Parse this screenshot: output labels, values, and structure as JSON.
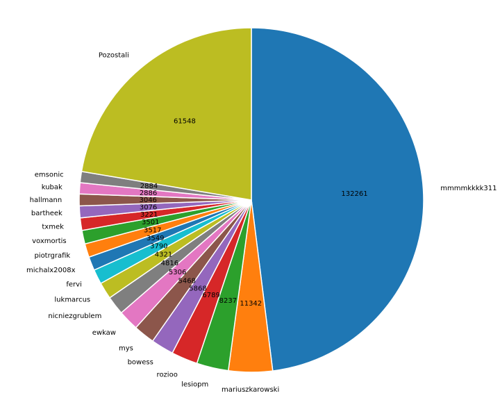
{
  "chart_data": {
    "type": "pie",
    "start_angle_deg": 90,
    "direction": "clockwise",
    "slices": [
      {
        "label": "mmmmkkkk311",
        "value": 132261,
        "color": "#1f77b4"
      },
      {
        "label": "mariuszkarowski",
        "value": 11342,
        "color": "#ff7f0e"
      },
      {
        "label": "lesiopm",
        "value": 8237,
        "color": "#2ca02c"
      },
      {
        "label": "rozioo",
        "value": 6789,
        "color": "#d62728"
      },
      {
        "label": "bowess",
        "value": 5868,
        "color": "#9467bd"
      },
      {
        "label": "mys",
        "value": 5468,
        "color": "#8c564b"
      },
      {
        "label": "ewkaw",
        "value": 5306,
        "color": "#e377c2"
      },
      {
        "label": "nicniezgrublem",
        "value": 4816,
        "color": "#7f7f7f"
      },
      {
        "label": "lukmarcus",
        "value": 4321,
        "color": "#bcbd22"
      },
      {
        "label": "fervi",
        "value": 3790,
        "color": "#17becf"
      },
      {
        "label": "michalx2008x",
        "value": 3549,
        "color": "#1f77b4"
      },
      {
        "label": "piotrgrafik",
        "value": 3517,
        "color": "#ff7f0e"
      },
      {
        "label": "voxmortis",
        "value": 3501,
        "color": "#2ca02c"
      },
      {
        "label": "txmek",
        "value": 3221,
        "color": "#d62728"
      },
      {
        "label": "bartheek",
        "value": 3076,
        "color": "#9467bd"
      },
      {
        "label": "hallmann",
        "value": 3046,
        "color": "#8c564b"
      },
      {
        "label": "kubak",
        "value": 2886,
        "color": "#e377c2"
      },
      {
        "label": "emsonic",
        "value": 2884,
        "color": "#7f7f7f"
      },
      {
        "label": "Pozostali",
        "value": 61548,
        "color": "#bcbd22"
      }
    ]
  }
}
